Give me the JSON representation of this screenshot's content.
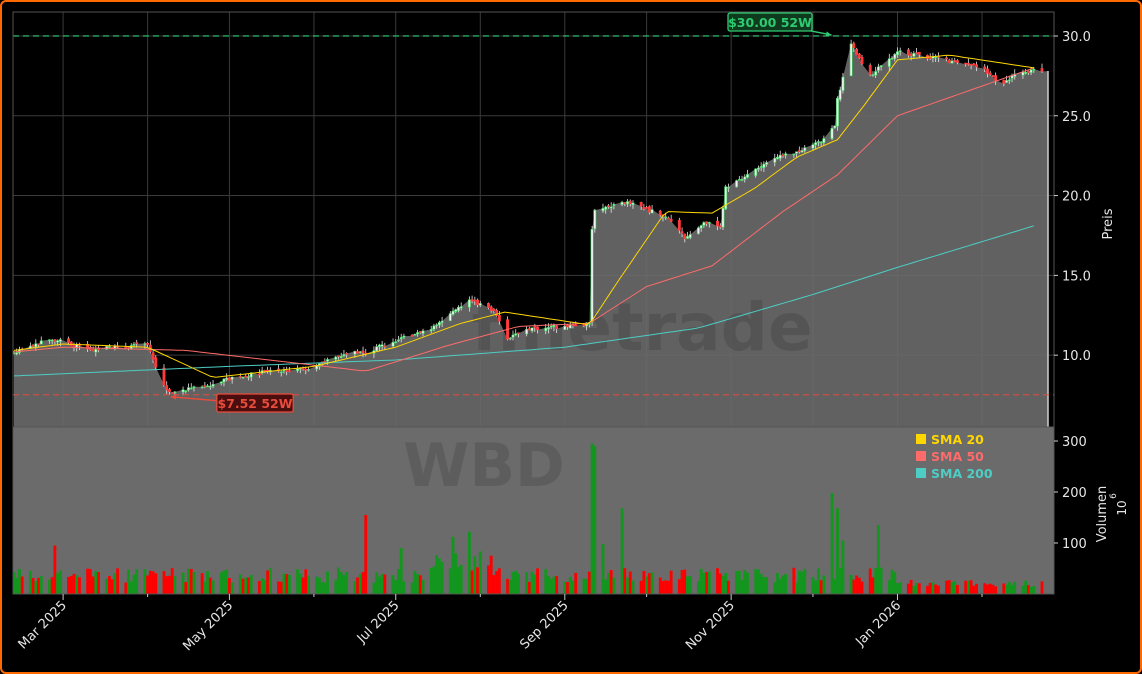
{
  "chart_data": {
    "type": "candlestick",
    "ticker_watermark": "WBD",
    "brand_watermark": "finetrade",
    "price_axis": {
      "label": "Preis",
      "ylim": [
        5.5,
        31.5
      ],
      "ticks": [
        10,
        15,
        20,
        25,
        30
      ],
      "tick_labels": [
        "10.0",
        "15.0",
        "20.0",
        "25.0",
        "30.0"
      ]
    },
    "volume_axis": {
      "label": "Volumen",
      "exponent_label": "10",
      "exponent_power": "6",
      "ylim": [
        0,
        300
      ],
      "ticks": [
        100,
        200,
        300
      ],
      "tick_labels": [
        "100",
        "200",
        "300"
      ]
    },
    "x_axis": {
      "start": "2025-02-11",
      "end": "2026-02-23",
      "major_ticks": [
        {
          "date": "2025-03-01",
          "label": "Mar 2025"
        },
        {
          "date": "2025-05-01",
          "label": "May 2025"
        },
        {
          "date": "2025-07-01",
          "label": "Jul 2025"
        },
        {
          "date": "2025-09-01",
          "label": "Sep 2025"
        },
        {
          "date": "2025-11-01",
          "label": "Nov 2025"
        },
        {
          "date": "2026-01-01",
          "label": "Jan 2026"
        }
      ],
      "minor_ticks": [
        "2025-04-01",
        "2025-06-01",
        "2025-08-01",
        "2025-10-01",
        "2025-12-01",
        "2026-02-01"
      ]
    },
    "grid": true,
    "legend_placement": "volume-top-right",
    "legend": [
      {
        "name": "SMA 20",
        "color": "#ffd700"
      },
      {
        "name": "SMA 50",
        "color": "#ff6b6b"
      },
      {
        "name": "SMA 200",
        "color": "#4ecdc4"
      }
    ],
    "annotations": {
      "high": {
        "label": "$30.00 52W",
        "value": 30.0,
        "date": "2025-12-10",
        "color": "#2ecc71"
      },
      "low": {
        "label": "$7.52 52W",
        "value": 7.52,
        "date": "2025-04-08",
        "color": "#e74c3c"
      }
    },
    "last_close": 27.8,
    "price_keypoints": [
      [
        "2025-02-11",
        10.2
      ],
      [
        "2025-02-20",
        10.8
      ],
      [
        "2025-03-01",
        10.9
      ],
      [
        "2025-03-10",
        10.3
      ],
      [
        "2025-03-20",
        10.5
      ],
      [
        "2025-04-01",
        10.7
      ],
      [
        "2025-04-04",
        9.2
      ],
      [
        "2025-04-08",
        7.7
      ],
      [
        "2025-04-20",
        8.0
      ],
      [
        "2025-05-01",
        8.5
      ],
      [
        "2025-05-15",
        9.0
      ],
      [
        "2025-06-01",
        9.2
      ],
      [
        "2025-06-10",
        10.0
      ],
      [
        "2025-06-20",
        10.2
      ],
      [
        "2025-07-01",
        10.9
      ],
      [
        "2025-07-15",
        11.8
      ],
      [
        "2025-07-28",
        13.5
      ],
      [
        "2025-08-07",
        12.6
      ],
      [
        "2025-08-11",
        11.0
      ],
      [
        "2025-08-20",
        11.7
      ],
      [
        "2025-09-01",
        11.8
      ],
      [
        "2025-09-10",
        12.0
      ],
      [
        "2025-09-11",
        18.0
      ],
      [
        "2025-09-12",
        19.0
      ],
      [
        "2025-09-25",
        19.6
      ],
      [
        "2025-10-10",
        18.5
      ],
      [
        "2025-10-15",
        17.4
      ],
      [
        "2025-10-22",
        18.3
      ],
      [
        "2025-10-28",
        18.0
      ],
      [
        "2025-10-30",
        20.5
      ],
      [
        "2025-11-05",
        21.0
      ],
      [
        "2025-11-15",
        22.3
      ],
      [
        "2025-11-25",
        22.7
      ],
      [
        "2025-12-05",
        23.5
      ],
      [
        "2025-12-09",
        24.3
      ],
      [
        "2025-12-10",
        26.0
      ],
      [
        "2025-12-15",
        29.5
      ],
      [
        "2025-12-22",
        27.5
      ],
      [
        "2026-01-01",
        29.0
      ],
      [
        "2026-01-15",
        28.6
      ],
      [
        "2026-02-01",
        28.0
      ],
      [
        "2026-02-08",
        27.0
      ],
      [
        "2026-02-15",
        27.8
      ],
      [
        "2026-02-23",
        27.8
      ]
    ],
    "sma20_keypoints": [
      [
        "2025-02-11",
        10.3
      ],
      [
        "2025-03-01",
        10.7
      ],
      [
        "2025-04-01",
        10.5
      ],
      [
        "2025-04-25",
        8.6
      ],
      [
        "2025-06-01",
        9.3
      ],
      [
        "2025-07-01",
        10.5
      ],
      [
        "2025-07-25",
        12.0
      ],
      [
        "2025-08-10",
        12.7
      ],
      [
        "2025-09-10",
        11.9
      ],
      [
        "2025-09-20",
        14.5
      ],
      [
        "2025-10-08",
        19.0
      ],
      [
        "2025-10-25",
        18.9
      ],
      [
        "2025-11-10",
        20.5
      ],
      [
        "2025-11-25",
        22.4
      ],
      [
        "2025-12-10",
        23.5
      ],
      [
        "2025-12-20",
        25.7
      ],
      [
        "2026-01-01",
        28.5
      ],
      [
        "2026-01-20",
        28.8
      ],
      [
        "2026-02-20",
        28.0
      ]
    ],
    "sma50_keypoints": [
      [
        "2025-02-11",
        10.2
      ],
      [
        "2025-03-01",
        10.5
      ],
      [
        "2025-04-15",
        10.3
      ],
      [
        "2025-06-20",
        9.0
      ],
      [
        "2025-07-20",
        10.6
      ],
      [
        "2025-08-15",
        11.8
      ],
      [
        "2025-09-10",
        12.0
      ],
      [
        "2025-10-01",
        14.3
      ],
      [
        "2025-10-25",
        15.6
      ],
      [
        "2025-11-20",
        19.0
      ],
      [
        "2025-12-10",
        21.3
      ],
      [
        "2026-01-01",
        25.0
      ],
      [
        "2026-02-20",
        28.0
      ]
    ],
    "sma200_keypoints": [
      [
        "2025-02-11",
        8.7
      ],
      [
        "2025-05-01",
        9.3
      ],
      [
        "2025-07-01",
        9.7
      ],
      [
        "2025-09-01",
        10.5
      ],
      [
        "2025-10-20",
        11.7
      ],
      [
        "2025-12-01",
        13.8
      ],
      [
        "2026-01-01",
        15.5
      ],
      [
        "2026-02-20",
        18.1
      ]
    ],
    "volume_spikes": [
      [
        "2025-02-26",
        95
      ],
      [
        "2025-06-20",
        155
      ],
      [
        "2025-06-28",
        106
      ],
      [
        "2025-07-03",
        90
      ],
      [
        "2025-07-22",
        112
      ],
      [
        "2025-07-28",
        122
      ],
      [
        "2025-08-02",
        118
      ],
      [
        "2025-09-11",
        295
      ],
      [
        "2025-09-12",
        290
      ],
      [
        "2025-09-15",
        98
      ],
      [
        "2025-09-22",
        168
      ],
      [
        "2025-12-08",
        198
      ],
      [
        "2025-12-10",
        168
      ],
      [
        "2025-12-12",
        105
      ],
      [
        "2025-12-25",
        135
      ]
    ]
  }
}
